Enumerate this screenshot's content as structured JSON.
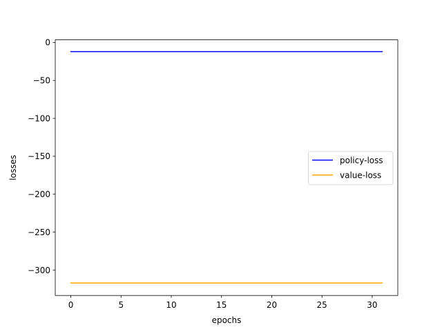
{
  "chart_data": {
    "type": "line",
    "title": "",
    "xlabel": "epochs",
    "ylabel": "losses",
    "xlim": [
      -1.55,
      32.55
    ],
    "ylim": [
      -333.5,
      3.5
    ],
    "xticks": [
      0,
      5,
      10,
      15,
      20,
      25,
      30
    ],
    "yticks": [
      0,
      -50,
      -100,
      -150,
      -200,
      -250,
      -300
    ],
    "grid": false,
    "legend_position": "center-right",
    "series": [
      {
        "name": "policy-loss",
        "color": "#0000ff",
        "x": [
          0,
          1,
          2,
          3,
          4,
          5,
          6,
          7,
          8,
          9,
          10,
          11,
          12,
          13,
          14,
          15,
          16,
          17,
          18,
          19,
          20,
          21,
          22,
          23,
          24,
          25,
          26,
          27,
          28,
          29,
          30,
          31
        ],
        "y": [
          -12,
          -12,
          -12,
          -12,
          -12,
          -12,
          -12,
          -12,
          -12,
          -12,
          -12,
          -12,
          -12,
          -12,
          -12,
          -12,
          -12,
          -12,
          -12,
          -12,
          -12,
          -12,
          -12,
          -12,
          -12,
          -12,
          -12,
          -12,
          -12,
          -12,
          -12,
          -12
        ]
      },
      {
        "name": "value-loss",
        "color": "#ffa500",
        "x": [
          0,
          1,
          2,
          3,
          4,
          5,
          6,
          7,
          8,
          9,
          10,
          11,
          12,
          13,
          14,
          15,
          16,
          17,
          18,
          19,
          20,
          21,
          22,
          23,
          24,
          25,
          26,
          27,
          28,
          29,
          30,
          31
        ],
        "y": [
          -317,
          -317,
          -317,
          -317,
          -317,
          -317,
          -317,
          -317,
          -317,
          -317,
          -317,
          -317,
          -317,
          -317,
          -317,
          -317,
          -317,
          -317,
          -317,
          -317,
          -317,
          -317,
          -317,
          -317,
          -317,
          -317,
          -317,
          -317,
          -317,
          -317,
          -317,
          -317
        ]
      }
    ]
  }
}
